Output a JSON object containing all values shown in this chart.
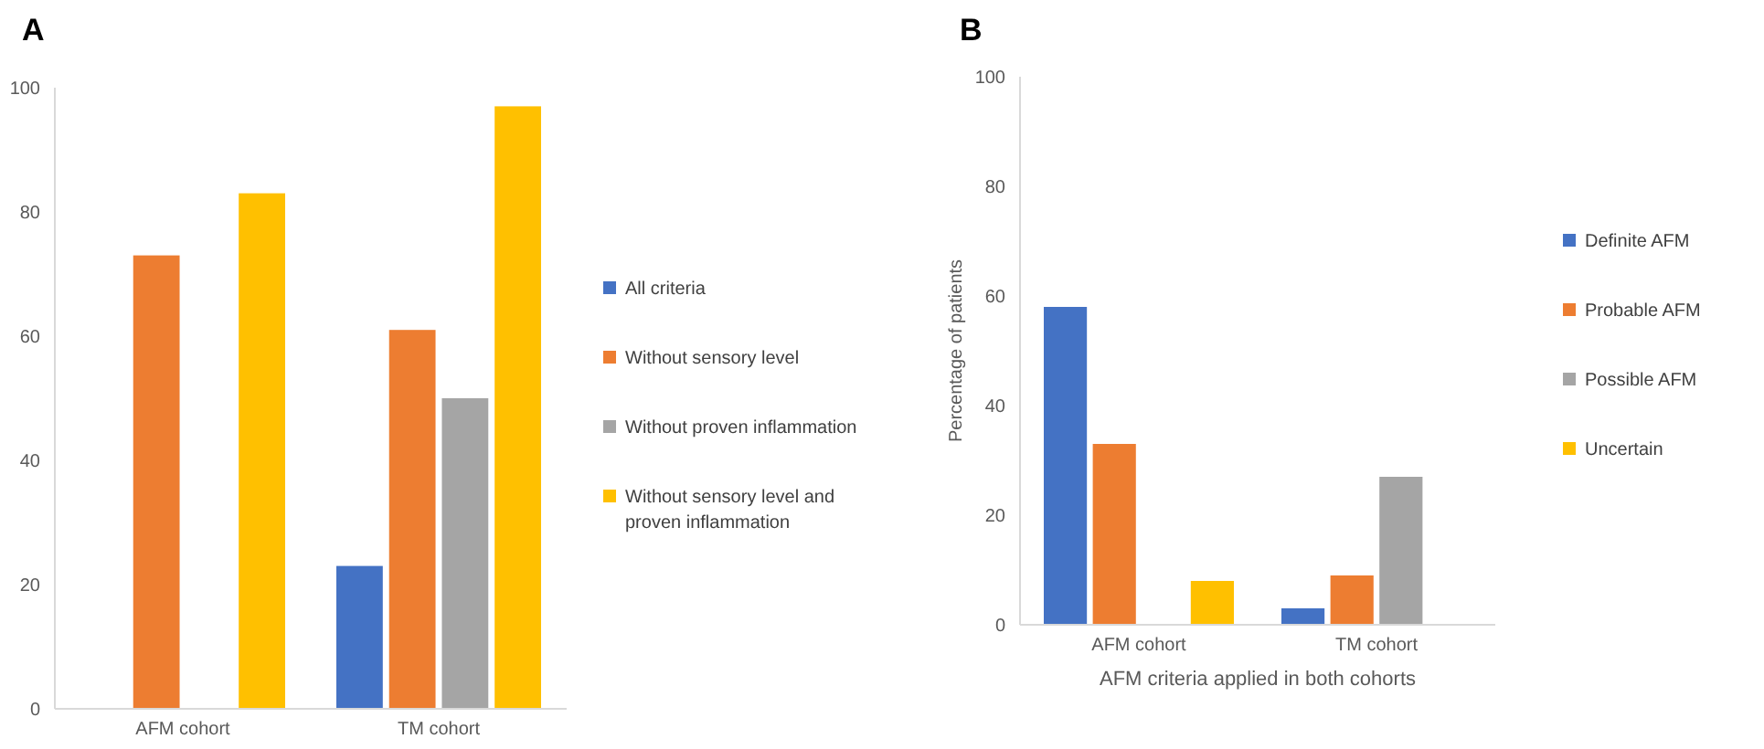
{
  "chart_data": [
    {
      "type": "bar",
      "title": "A",
      "categories": [
        "AFM cohort",
        "TM cohort"
      ],
      "ylim": [
        0,
        100
      ],
      "yticks": [
        0,
        20,
        40,
        60,
        80,
        100
      ],
      "grid": false,
      "legend": "right",
      "series": [
        {
          "name": "All criteria",
          "color": "#4472c4",
          "values": [
            0,
            23
          ]
        },
        {
          "name": "Without sensory level",
          "color": "#ed7d31",
          "values": [
            73,
            61
          ]
        },
        {
          "name": "Without proven inflammation",
          "color": "#a5a5a5",
          "values": [
            0,
            50
          ]
        },
        {
          "name": "Without sensory level and proven inflammation",
          "color": "#ffc000",
          "values": [
            83,
            97
          ]
        }
      ]
    },
    {
      "type": "bar",
      "title": "B",
      "categories": [
        "AFM cohort",
        "TM cohort"
      ],
      "ylabel": "Percentage of patients",
      "xlabel": "AFM criteria applied in both cohorts",
      "ylim": [
        0,
        100
      ],
      "yticks": [
        0,
        20,
        40,
        60,
        80,
        100
      ],
      "grid": false,
      "legend": "right",
      "series": [
        {
          "name": "Definite AFM",
          "color": "#4472c4",
          "values": [
            58,
            3
          ]
        },
        {
          "name": "Probable AFM",
          "color": "#ed7d31",
          "values": [
            33,
            9
          ]
        },
        {
          "name": "Possible AFM",
          "color": "#a5a5a5",
          "values": [
            0,
            27
          ]
        },
        {
          "name": "Uncertain",
          "color": "#ffc000",
          "values": [
            8,
            0
          ]
        }
      ]
    }
  ]
}
